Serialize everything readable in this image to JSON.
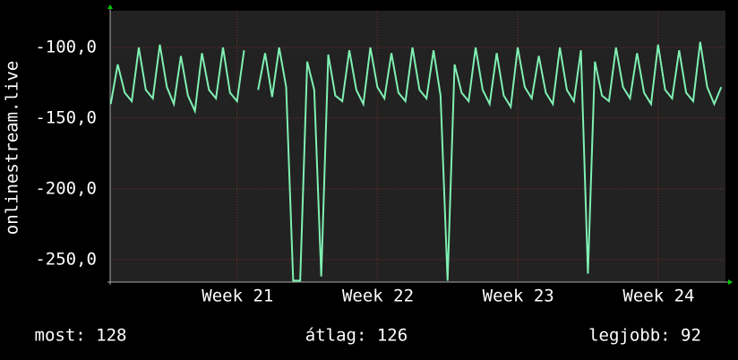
{
  "chart_data": {
    "type": "line",
    "ylabel": "onlinestream.live",
    "x": [
      20.1,
      20.15,
      20.2,
      20.25,
      20.3,
      20.35,
      20.4,
      20.45,
      20.5,
      20.55,
      20.6,
      20.65,
      20.7,
      20.75,
      20.8,
      20.85,
      20.9,
      20.95,
      21.0,
      21.05,
      21.1,
      21.15,
      21.2,
      21.25,
      21.3,
      21.35,
      21.4,
      21.45,
      21.5,
      21.55,
      21.6,
      21.65,
      21.7,
      21.75,
      21.8,
      21.85,
      21.9,
      21.95,
      22.0,
      22.05,
      22.1,
      22.15,
      22.2,
      22.25,
      22.3,
      22.35,
      22.4,
      22.45,
      22.5,
      22.55,
      22.6,
      22.65,
      22.7,
      22.75,
      22.8,
      22.85,
      22.9,
      22.95,
      23.0,
      23.05,
      23.1,
      23.15,
      23.2,
      23.25,
      23.3,
      23.35,
      23.4,
      23.45,
      23.5,
      23.55,
      23.6,
      23.65,
      23.7,
      23.75,
      23.8,
      23.85,
      23.9,
      23.95,
      24.0,
      24.05,
      24.1,
      24.15,
      24.2,
      24.25,
      24.3,
      24.35,
      24.4,
      24.45
    ],
    "series": [
      {
        "color": "#7ff0b2",
        "values": [
          -140,
          -112,
          -132,
          -138,
          -100,
          -130,
          -136,
          -98,
          -128,
          -140,
          -106,
          -134,
          -145,
          -104,
          -130,
          -136,
          -100,
          -132,
          -138,
          -102,
          null,
          -130,
          -104,
          -135,
          -100,
          -128,
          -265,
          -265,
          -110,
          -130,
          -262,
          -105,
          -134,
          -138,
          -102,
          -130,
          -140,
          -100,
          -128,
          -136,
          -104,
          -132,
          -138,
          -100,
          -130,
          -136,
          -102,
          -134,
          -265,
          -112,
          -132,
          -138,
          -100,
          -130,
          -140,
          -104,
          -134,
          -142,
          -100,
          -128,
          -136,
          -106,
          -132,
          -140,
          -100,
          -130,
          -138,
          -102,
          -260,
          -110,
          -134,
          -138,
          -100,
          -128,
          -136,
          -104,
          -132,
          -140,
          -98,
          -130,
          -136,
          -102,
          -132,
          -138,
          -96,
          -128,
          -140,
          -128
        ]
      }
    ],
    "xlim": [
      20.096,
      24.48
    ],
    "xticks": [
      {
        "value": 21,
        "label": "Week 21"
      },
      {
        "value": 22,
        "label": "Week 22"
      },
      {
        "value": 23,
        "label": "Week 23"
      },
      {
        "value": 24,
        "label": "Week 24"
      }
    ],
    "ylim": [
      -266,
      -74
    ],
    "yticks": [
      {
        "value": -100,
        "label": "-100,0"
      },
      {
        "value": -150,
        "label": "-150,0"
      },
      {
        "value": -200,
        "label": "-200,0"
      },
      {
        "value": -250,
        "label": "-250,0"
      }
    ],
    "grid": true,
    "stats": [
      "most: 128",
      "átlag: 126",
      "legjobb: 92"
    ]
  }
}
